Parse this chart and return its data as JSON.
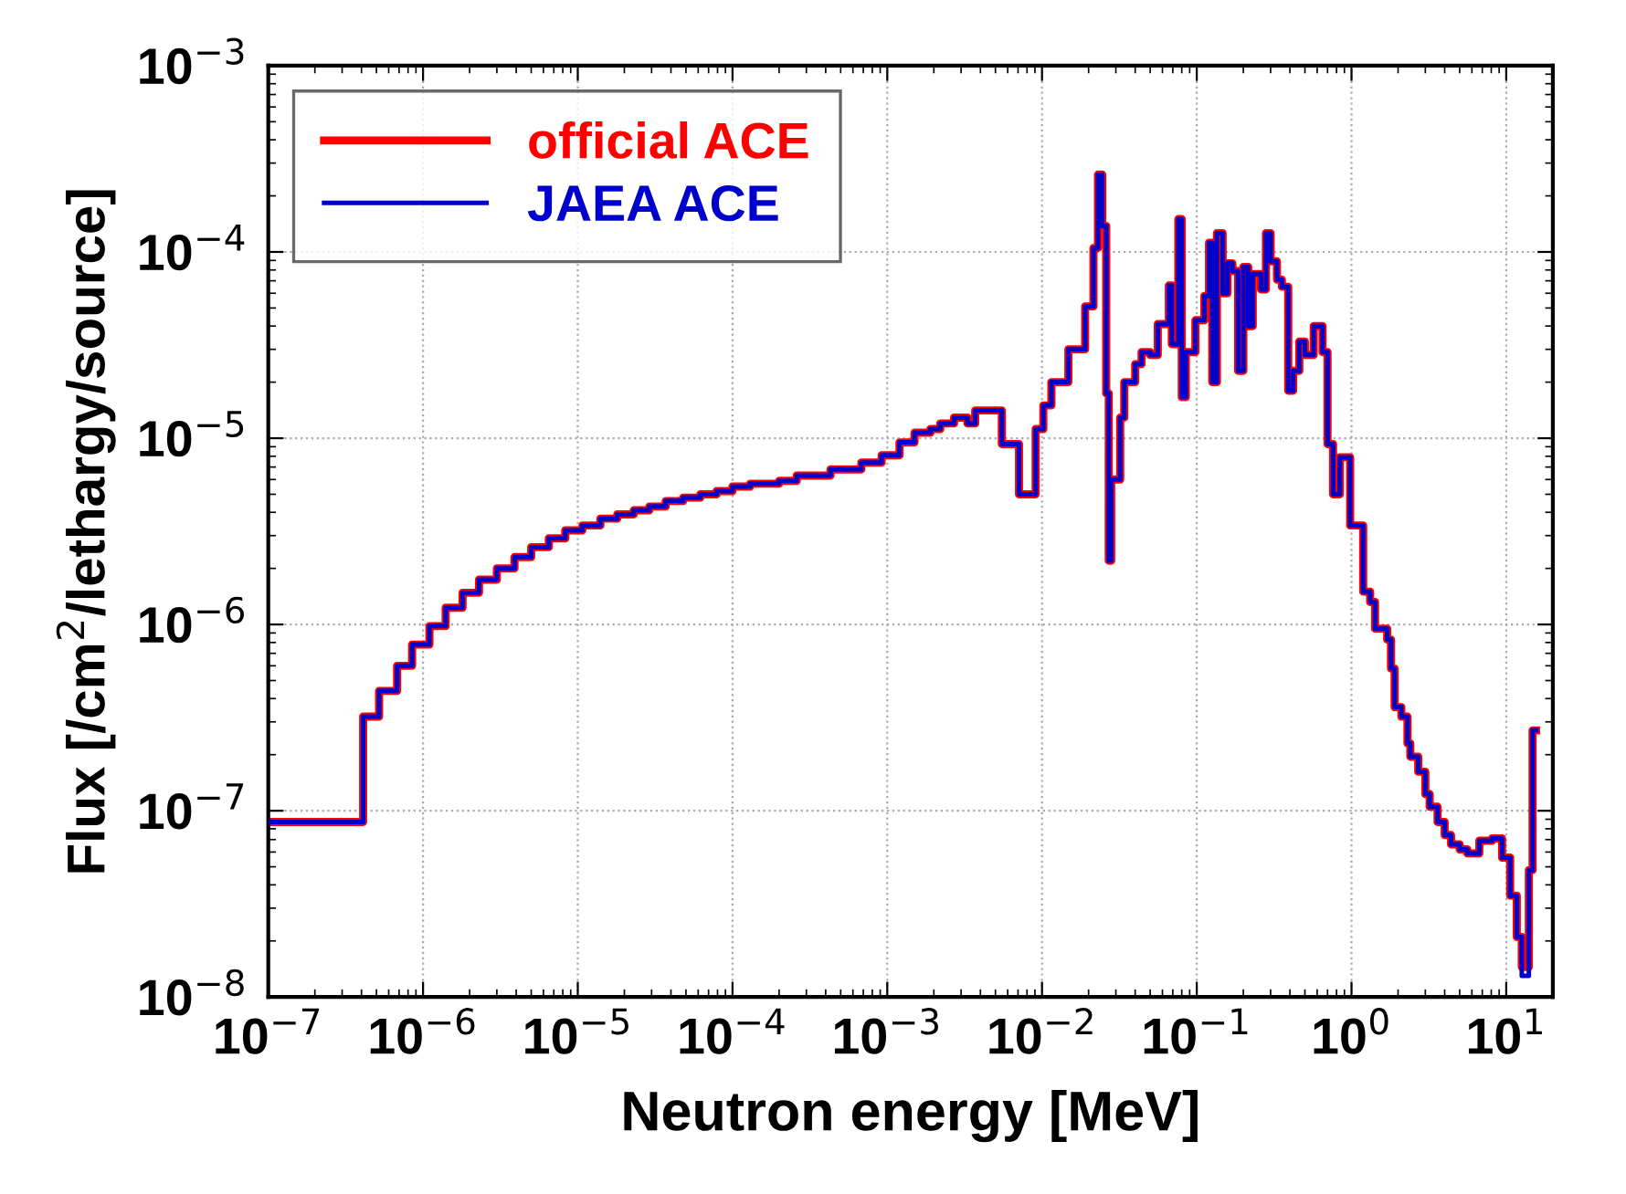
{
  "chart_data": {
    "type": "step",
    "xlabel": "Neutron energy [MeV]",
    "ylabel": "Flux [/cm$^{2}$/lethargy/source]",
    "log": "xy",
    "grid": true,
    "legend": "top left",
    "line_style": "solid",
    "xlim": [
      1e-07,
      20
    ],
    "ylim": [
      1e-08,
      0.001
    ],
    "xticks": [
      {
        "value": 1e-07,
        "label": "10$^{−7}$"
      },
      {
        "value": 1e-06,
        "label": "10$^{−6}$"
      },
      {
        "value": 1e-05,
        "label": "10$^{−5}$"
      },
      {
        "value": 0.0001,
        "label": "10$^{−4}$"
      },
      {
        "value": 0.001,
        "label": "10$^{−3}$"
      },
      {
        "value": 0.01,
        "label": "10$^{−2}$"
      },
      {
        "value": 0.1,
        "label": "10$^{−1}$"
      },
      {
        "value": 1,
        "label": "10$^{0}$"
      },
      {
        "value": 10,
        "label": "10$^{1}$"
      }
    ],
    "yticks": [
      {
        "value": 1e-08,
        "label": "10$^{−8}$"
      },
      {
        "value": 1e-07,
        "label": "10$^{−7}$"
      },
      {
        "value": 1e-06,
        "label": "10$^{−6}$"
      },
      {
        "value": 1e-05,
        "label": "10$^{−5}$"
      },
      {
        "value": 0.0001,
        "label": "10$^{−4}$"
      },
      {
        "value": 0.001,
        "label": "10$^{−3}$"
      }
    ],
    "x": [
      1e-07,
      4.1e-07,
      5.2e-07,
      6.8e-07,
      8.5e-07,
      1.1e-06,
      1.4e-06,
      1.8e-06,
      2.3e-06,
      3e-06,
      3.9e-06,
      5e-06,
      6.5e-06,
      8.3e-06,
      1.07e-05,
      1.4e-05,
      1.8e-05,
      2.3e-05,
      2.9e-05,
      3.7e-05,
      4.8e-05,
      6.2e-05,
      7.9e-05,
      0.0001,
      0.00013,
      0.0002,
      0.00026,
      0.00043,
      0.00068,
      0.00092,
      0.0012,
      0.0015,
      0.0019,
      0.0022,
      0.0027,
      0.0033,
      0.0037,
      0.0055,
      0.0071,
      0.0091,
      0.0102,
      0.0115,
      0.0148,
      0.019,
      0.0215,
      0.023,
      0.0245,
      0.026,
      0.027,
      0.028,
      0.032,
      0.034,
      0.04,
      0.044,
      0.05,
      0.056,
      0.066,
      0.069,
      0.076,
      0.08,
      0.085,
      0.098,
      0.112,
      0.12,
      0.126,
      0.135,
      0.147,
      0.158,
      0.17,
      0.185,
      0.2,
      0.215,
      0.23,
      0.26,
      0.28,
      0.3,
      0.33,
      0.355,
      0.39,
      0.42,
      0.46,
      0.5,
      0.57,
      0.65,
      0.7,
      0.76,
      0.84,
      0.98,
      1.19,
      1.32,
      1.42,
      1.7,
      1.8,
      1.9,
      2.1,
      2.3,
      2.4,
      2.7,
      3.0,
      3.2,
      3.6,
      4.0,
      4.4,
      5.0,
      5.6,
      6.7,
      8.1,
      9.4,
      10.6,
      11.7,
      12.6,
      14.0,
      14.8,
      15.6
    ],
    "series": [
      {
        "name": "official ACE",
        "color": "#ff0000",
        "values": [
          8.7e-08,
          3.2e-07,
          4.4e-07,
          6e-07,
          7.8e-07,
          9.8e-07,
          1.23e-06,
          1.48e-06,
          1.74e-06,
          2e-06,
          2.3e-06,
          2.6e-06,
          2.9e-06,
          3.2e-06,
          3.4e-06,
          3.7e-06,
          3.9e-06,
          4.1e-06,
          4.3e-06,
          4.6e-06,
          4.8e-06,
          5e-06,
          5.2e-06,
          5.5e-06,
          5.7e-06,
          5.9e-06,
          6.3e-06,
          6.8e-06,
          7.4e-06,
          8.1e-06,
          9.5e-06,
          1.07e-05,
          1.12e-05,
          1.2e-05,
          1.29e-05,
          1.2e-05,
          1.41e-05,
          9.3e-06,
          5e-06,
          1.12e-05,
          1.5e-05,
          2e-05,
          3e-05,
          5.1e-05,
          0.000105,
          0.00026,
          0.000138,
          1.74e-05,
          2.2e-06,
          6e-06,
          1.29e-05,
          2e-05,
          2.5e-05,
          2.9e-05,
          2.8e-05,
          4.1e-05,
          6.6e-05,
          3.2e-05,
          0.00015,
          1.66e-05,
          2.9e-05,
          4.3e-05,
          5.8e-05,
          0.000112,
          2e-05,
          0.000126,
          6e-05,
          8.7e-05,
          7.9e-05,
          2.3e-05,
          8.3e-05,
          4e-05,
          7.6e-05,
          6.3e-05,
          0.000126,
          8.9e-05,
          7.1e-05,
          6.5e-05,
          1.8e-05,
          2.3e-05,
          3.3e-05,
          2.8e-05,
          4e-05,
          2.9e-05,
          9.3e-06,
          5e-06,
          7.9e-06,
          3.4e-06,
          1.5e-06,
          1.32e-06,
          9.5e-07,
          8.3e-07,
          5.8e-07,
          3.6e-07,
          3.2e-07,
          2.3e-07,
          1.95e-07,
          1.62e-07,
          1.23e-07,
          1.05e-07,
          8.7e-08,
          7.4e-08,
          6.6e-08,
          6.2e-08,
          5.9e-08,
          6.9e-08,
          7.1e-08,
          5.6e-08,
          3.5e-08,
          2.1e-08,
          1.45e-08,
          4.8e-08,
          2.7e-07,
          2.7e-07
        ]
      },
      {
        "name": "JAEA ACE",
        "color": "#0000cc",
        "values": [
          8.7e-08,
          3.2e-07,
          4.4e-07,
          6e-07,
          7.8e-07,
          9.8e-07,
          1.23e-06,
          1.48e-06,
          1.74e-06,
          2e-06,
          2.3e-06,
          2.6e-06,
          2.9e-06,
          3.2e-06,
          3.4e-06,
          3.7e-06,
          3.9e-06,
          4.1e-06,
          4.3e-06,
          4.6e-06,
          4.8e-06,
          5e-06,
          5.2e-06,
          5.5e-06,
          5.7e-06,
          5.9e-06,
          6.3e-06,
          6.8e-06,
          7.4e-06,
          8.1e-06,
          9.5e-06,
          1.07e-05,
          1.12e-05,
          1.2e-05,
          1.29e-05,
          1.2e-05,
          1.41e-05,
          9.3e-06,
          5e-06,
          1.12e-05,
          1.5e-05,
          2e-05,
          3e-05,
          5.1e-05,
          0.000105,
          0.00026,
          0.000138,
          1.74e-05,
          2.2e-06,
          6e-06,
          1.29e-05,
          2e-05,
          2.5e-05,
          2.9e-05,
          2.8e-05,
          4.1e-05,
          6.6e-05,
          3.2e-05,
          0.00015,
          1.66e-05,
          2.9e-05,
          4.3e-05,
          5.8e-05,
          0.000112,
          2e-05,
          0.000126,
          6e-05,
          8.7e-05,
          7.9e-05,
          2.3e-05,
          8.3e-05,
          4e-05,
          7.6e-05,
          6.3e-05,
          0.000126,
          8.9e-05,
          7.1e-05,
          6.5e-05,
          1.8e-05,
          2.3e-05,
          3.3e-05,
          2.8e-05,
          4e-05,
          2.9e-05,
          9.3e-06,
          5e-06,
          7.9e-06,
          3.4e-06,
          1.5e-06,
          1.32e-06,
          9.5e-07,
          8.3e-07,
          5.8e-07,
          3.6e-07,
          3.2e-07,
          2.3e-07,
          1.95e-07,
          1.62e-07,
          1.23e-07,
          1.05e-07,
          8.7e-08,
          7.4e-08,
          6.6e-08,
          6.2e-08,
          5.9e-08,
          6.9e-08,
          7.1e-08,
          5.6e-08,
          3.5e-08,
          2.1e-08,
          1.3e-08,
          4.8e-08,
          2.7e-07,
          2.7e-07
        ]
      }
    ]
  }
}
